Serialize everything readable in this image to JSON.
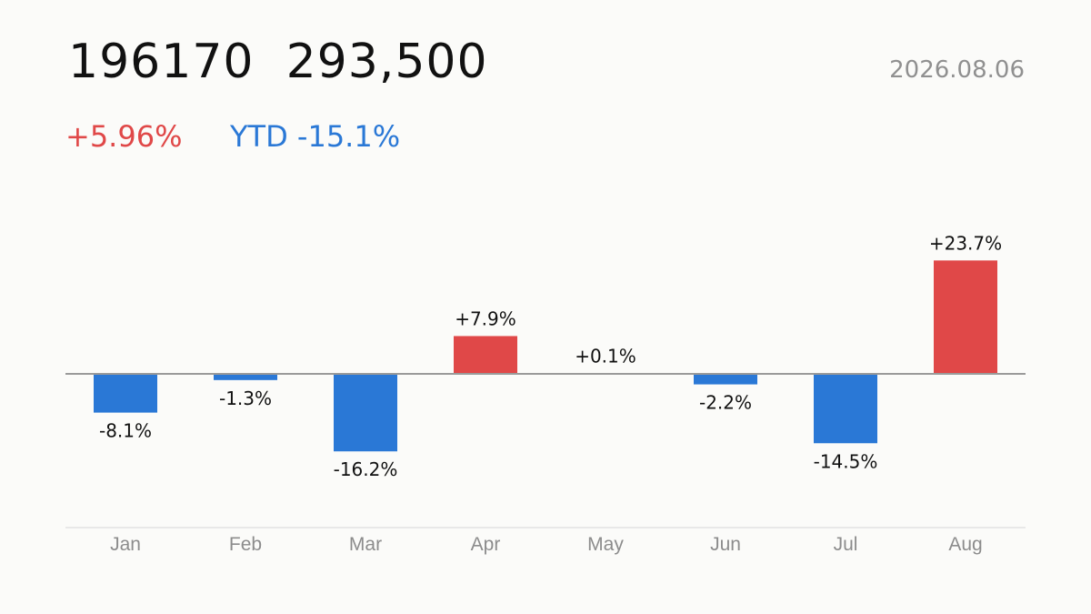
{
  "header": {
    "title": "196170  293,500",
    "date": "2026.08.06",
    "change": "+5.96%",
    "ytd": "YTD -15.1%"
  },
  "colors": {
    "positive": "#e04848",
    "negative": "#2a78d6",
    "axis": "#9a9a9a",
    "baseline": "#e2e2e2"
  },
  "chart_data": {
    "type": "bar",
    "categories": [
      "Jan",
      "Feb",
      "Mar",
      "Apr",
      "May",
      "Jun",
      "Jul",
      "Aug"
    ],
    "values": [
      -8.1,
      -1.3,
      -16.2,
      7.9,
      0.1,
      -2.2,
      -14.5,
      23.7
    ],
    "data_labels": [
      "-8.1%",
      "-1.3%",
      "-16.2%",
      "+7.9%",
      "+0.1%",
      "-2.2%",
      "-14.5%",
      "+23.7%"
    ],
    "title": "",
    "xlabel": "",
    "ylabel": "",
    "grid": false,
    "legend": "none"
  }
}
